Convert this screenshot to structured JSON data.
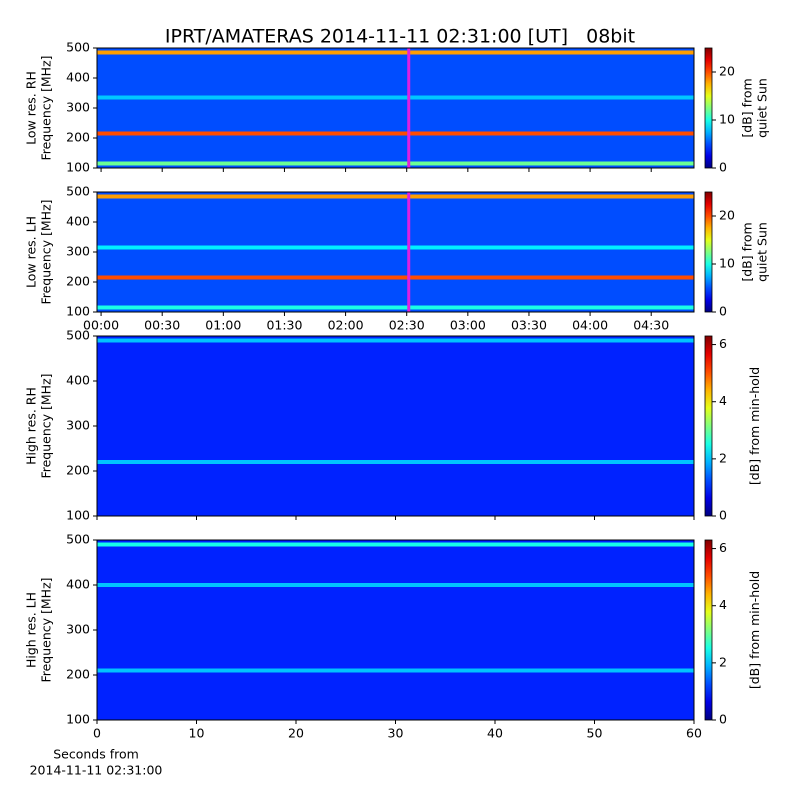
{
  "chart_data": [
    {
      "type": "heatmap",
      "title": "IPRT/AMATERAS 2014-11-11 02:31:00 [UT]   08bit",
      "ylabel": [
        "Low res. RH",
        "Frequency [MHz]"
      ],
      "ylim": [
        100,
        500
      ],
      "yticks": [
        100,
        200,
        300,
        400,
        500
      ],
      "xlim": [
        -2,
        291
      ],
      "xticks": [
        {
          "value": 0,
          "label": "00:00"
        },
        {
          "value": 30,
          "label": "00:30"
        },
        {
          "value": 60,
          "label": "01:00"
        },
        {
          "value": 90,
          "label": "01:30"
        },
        {
          "value": 120,
          "label": "02:00"
        },
        {
          "value": 150,
          "label": "02:30"
        },
        {
          "value": 180,
          "label": "03:00"
        },
        {
          "value": 210,
          "label": "03:30"
        },
        {
          "value": 240,
          "label": "04:00"
        },
        {
          "value": 270,
          "label": "04:30"
        }
      ],
      "show_xticklabels": false,
      "background": 5,
      "bands": [
        {
          "y": 485,
          "value": 18
        },
        {
          "y": 215,
          "value": 20
        },
        {
          "y": 335,
          "value": 8
        },
        {
          "y": 115,
          "value": 12
        }
      ],
      "marker": {
        "x": 151,
        "color": "#e020e0"
      },
      "colorbar": {
        "label": [
          "[dB] from",
          "quiet Sun"
        ],
        "lim": [
          0,
          25
        ],
        "ticks": [
          0,
          10,
          20
        ]
      }
    },
    {
      "type": "heatmap",
      "ylabel": [
        "Low res. LH",
        "Frequency [MHz]"
      ],
      "ylim": [
        100,
        500
      ],
      "yticks": [
        100,
        200,
        300,
        400,
        500
      ],
      "xlim": [
        -2,
        291
      ],
      "xticks": [
        {
          "value": 0,
          "label": "00:00"
        },
        {
          "value": 30,
          "label": "00:30"
        },
        {
          "value": 60,
          "label": "01:00"
        },
        {
          "value": 90,
          "label": "01:30"
        },
        {
          "value": 120,
          "label": "02:00"
        },
        {
          "value": 150,
          "label": "02:30"
        },
        {
          "value": 180,
          "label": "03:00"
        },
        {
          "value": 210,
          "label": "03:30"
        },
        {
          "value": 240,
          "label": "04:00"
        },
        {
          "value": 270,
          "label": "04:30"
        }
      ],
      "show_xticklabels": true,
      "background": 5,
      "bands": [
        {
          "y": 485,
          "value": 18
        },
        {
          "y": 215,
          "value": 20
        },
        {
          "y": 315,
          "value": 9
        },
        {
          "y": 115,
          "value": 10
        }
      ],
      "marker": {
        "x": 151,
        "color": "#e020e0"
      },
      "colorbar": {
        "label": [
          "[dB] from",
          "quiet Sun"
        ],
        "lim": [
          0,
          25
        ],
        "ticks": [
          0,
          10,
          20
        ]
      }
    },
    {
      "type": "heatmap",
      "ylabel": [
        "High res. RH",
        "Frequency [MHz]"
      ],
      "ylim": [
        100,
        500
      ],
      "yticks": [
        100,
        200,
        300,
        400,
        500
      ],
      "xlim": [
        0,
        60
      ],
      "xticks": [
        0,
        10,
        20,
        30,
        40,
        50,
        60
      ],
      "show_xticklabels": false,
      "background": 1,
      "bands": [
        {
          "y": 490,
          "value": 2
        },
        {
          "y": 220,
          "value": 2
        }
      ],
      "colorbar": {
        "label": [
          "[dB] from min-hold"
        ],
        "lim": [
          0,
          6.3
        ],
        "ticks": [
          0,
          2,
          4,
          6
        ]
      }
    },
    {
      "type": "heatmap",
      "ylabel": [
        "High res. LH",
        "Frequency [MHz]"
      ],
      "ylim": [
        100,
        500
      ],
      "yticks": [
        100,
        200,
        300,
        400,
        500
      ],
      "xlim": [
        0,
        60
      ],
      "xticks": [
        0,
        10,
        20,
        30,
        40,
        50,
        60
      ],
      "show_xticklabels": true,
      "background": 1,
      "xlabel": [
        "Seconds from",
        "2014-11-11 02:31:00"
      ],
      "bands": [
        {
          "y": 490,
          "value": 2.5
        },
        {
          "y": 400,
          "value": 2
        },
        {
          "y": 210,
          "value": 2
        }
      ],
      "colorbar": {
        "label": [
          "[dB] from min-hold"
        ],
        "lim": [
          0,
          6.3
        ],
        "ticks": [
          0,
          2,
          4,
          6
        ]
      }
    }
  ]
}
